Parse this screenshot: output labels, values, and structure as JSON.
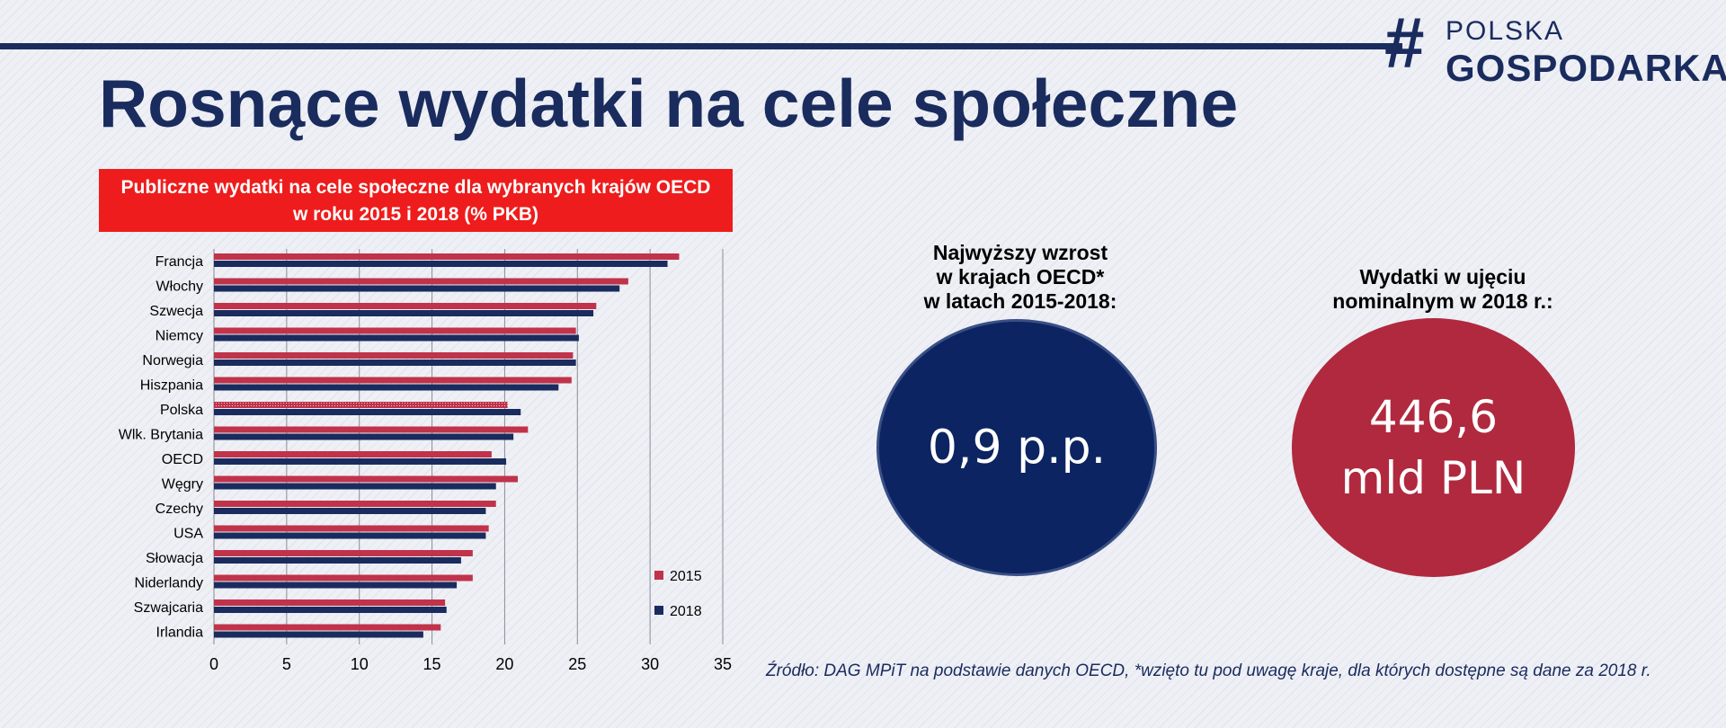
{
  "header": {
    "page_title": "Rosnące wydatki na cele społeczne",
    "logo": {
      "hash": "#",
      "line1": "POLSKA",
      "line2": "GOSPODARKA"
    }
  },
  "chart_title": {
    "line1": "Publiczne wydatki na cele społeczne dla wybranych krajów OECD",
    "line2": "w roku 2015 i 2018 (% PKB)"
  },
  "chart_data": {
    "type": "bar",
    "orientation": "horizontal",
    "categories": [
      "Francja",
      "Włochy",
      "Szwecja",
      "Niemcy",
      "Norwegia",
      "Hiszpania",
      "Polska",
      "Wlk. Brytania",
      "OECD",
      "Węgry",
      "Czechy",
      "USA",
      "Słowacja",
      "Niderlandy",
      "Szwajcaria",
      "Irlandia"
    ],
    "series": [
      {
        "name": "2015",
        "color": "#c0334a",
        "values": [
          32.0,
          28.5,
          26.3,
          24.9,
          24.7,
          24.6,
          20.2,
          21.6,
          19.1,
          20.9,
          19.4,
          18.9,
          17.8,
          17.8,
          15.9,
          15.6
        ]
      },
      {
        "name": "2018",
        "color": "#1a2b5e",
        "values": [
          31.2,
          27.9,
          26.1,
          25.1,
          24.9,
          23.7,
          21.1,
          20.6,
          20.1,
          19.4,
          18.7,
          18.7,
          17.0,
          16.7,
          16.0,
          14.4
        ]
      }
    ],
    "xlim": [
      0,
      35
    ],
    "x_ticks": [
      "0",
      "5",
      "10",
      "15",
      "20",
      "25",
      "30",
      "35"
    ],
    "grid": true,
    "legend_position": "bottom-right"
  },
  "kpi": [
    {
      "heading": [
        "Najwyższy wzrost",
        "w krajach OECD*",
        "w latach 2015-2018:"
      ],
      "value": [
        "0,9 p.p."
      ],
      "color": "#0c2461"
    },
    {
      "heading": [
        "Wydatki w ujęciu",
        "nominalnym w 2018 r.:"
      ],
      "value": [
        "446,6",
        "mld PLN"
      ],
      "color": "#b0293f"
    }
  ],
  "source": "Źródło: DAG MPiT na podstawie  danych OECD, *wzięto tu pod uwagę kraje, dla których dostępne są dane za 2018 r."
}
